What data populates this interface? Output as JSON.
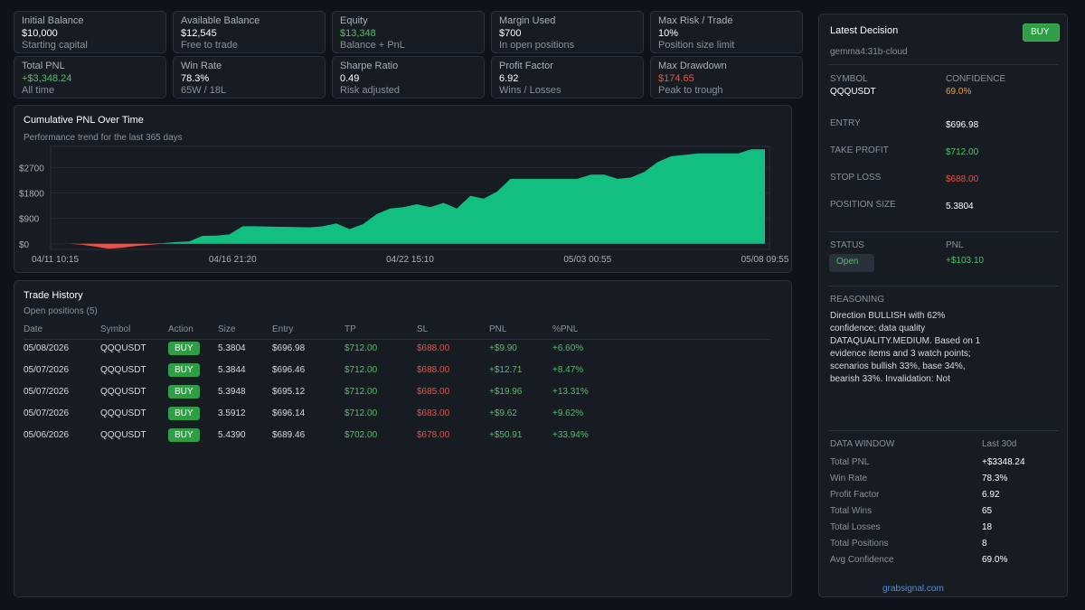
{
  "stats": {
    "initial_balance": {
      "label": "Initial Balance",
      "value": "$10,000",
      "sub": "Starting capital"
    },
    "available_balance": {
      "label": "Available Balance",
      "value": "$12,545",
      "sub": "Free to trade"
    },
    "equity": {
      "label": "Equity",
      "value": "$13,348",
      "sub": "Balance + PnL"
    },
    "margin_used": {
      "label": "Margin Used",
      "value": "$700",
      "sub": "In open positions"
    },
    "max_risk": {
      "label": "Max Risk / Trade",
      "value": "10%",
      "sub": "Position size limit"
    },
    "total_pnl": {
      "label": "Total PNL",
      "value": "+$3,348.24",
      "sub": "All time"
    },
    "win_rate": {
      "label": "Win Rate",
      "value": "78.3%",
      "sub": "65W / 18L"
    },
    "sharpe": {
      "label": "Sharpe Ratio",
      "value": "0.49",
      "sub": "Risk adjusted"
    },
    "profit_factor": {
      "label": "Profit Factor",
      "value": "6.92",
      "sub": "Wins / Losses"
    },
    "max_drawdown": {
      "label": "Max Drawdown",
      "value": "$174.65",
      "sub": "Peak to trough"
    }
  },
  "chart_data": {
    "type": "area",
    "title": "Cumulative PNL Over Time",
    "subtitle": "Performance trend for the last 365 days",
    "xlabel": "",
    "ylabel": "",
    "x_tick_labels": [
      "04/11 10:15",
      "04/16 21:20",
      "04/22 15:10",
      "05/03 00:55",
      "05/08 09:55"
    ],
    "y_tick_labels": [
      "$0",
      "$900",
      "$1800",
      "$2700"
    ],
    "ylim": [
      -200,
      3450
    ],
    "grid": true,
    "positive_color": "#12bf80",
    "negative_color": "#e5534b",
    "values": [
      0,
      0,
      -30,
      -100,
      -175,
      -140,
      -80,
      -40,
      20,
      60,
      80,
      280,
      290,
      330,
      620,
      620,
      610,
      600,
      590,
      580,
      620,
      720,
      520,
      700,
      1050,
      1250,
      1300,
      1400,
      1300,
      1450,
      1250,
      1700,
      1600,
      1850,
      2300,
      2300,
      2300,
      2300,
      2300,
      2300,
      2450,
      2450,
      2300,
      2350,
      2550,
      2900,
      3100,
      3150,
      3200,
      3200,
      3200,
      3200,
      3350,
      3348
    ]
  },
  "trade_history": {
    "title": "Trade History",
    "subtitle": "Open positions (5)",
    "columns": [
      "Date",
      "Symbol",
      "Action",
      "Size",
      "Entry",
      "TP",
      "SL",
      "PNL",
      "%PNL"
    ],
    "rows": [
      {
        "date": "05/08/2026",
        "symbol": "QQQUSDT",
        "action": "BUY",
        "size": "5.3804",
        "entry": "$696.98",
        "tp": "$712.00",
        "sl": "$688.00",
        "pnl": "+$9.90",
        "pnl_pct": "+6.60%"
      },
      {
        "date": "05/07/2026",
        "symbol": "QQQUSDT",
        "action": "BUY",
        "size": "5.3844",
        "entry": "$696.46",
        "tp": "$712.00",
        "sl": "$688.00",
        "pnl": "+$12.71",
        "pnl_pct": "+8.47%"
      },
      {
        "date": "05/07/2026",
        "symbol": "QQQUSDT",
        "action": "BUY",
        "size": "5.3948",
        "entry": "$695.12",
        "tp": "$712.00",
        "sl": "$685.00",
        "pnl": "+$19.96",
        "pnl_pct": "+13.31%"
      },
      {
        "date": "05/07/2026",
        "symbol": "QQQUSDT",
        "action": "BUY",
        "size": "3.5912",
        "entry": "$696.14",
        "tp": "$712.00",
        "sl": "$683.00",
        "pnl": "+$9.62",
        "pnl_pct": "+9.62%"
      },
      {
        "date": "05/06/2026",
        "symbol": "QQQUSDT",
        "action": "BUY",
        "size": "5.4390",
        "entry": "$689.46",
        "tp": "$702.00",
        "sl": "$678.00",
        "pnl": "+$50.91",
        "pnl_pct": "+33.94%"
      }
    ]
  },
  "decision": {
    "title": "Latest Decision",
    "badge": "BUY",
    "model": "gemma4:31b-cloud",
    "symbol_label": "SYMBOL",
    "symbol": "QQQUSDT",
    "confidence_label": "CONFIDENCE",
    "confidence": "69.0%",
    "entry_label": "ENTRY",
    "entry": "$696.98",
    "tp_label": "TAKE PROFIT",
    "tp": "$712.00",
    "sl_label": "STOP LOSS",
    "sl": "$688.00",
    "size_label": "POSITION SIZE",
    "size": "5.3804",
    "status_label": "STATUS",
    "status": "Open",
    "pnl_label": "PNL",
    "pnl": "+$103.10",
    "reasoning_label": "REASONING",
    "reasoning": "Direction BULLISH with 62% confidence; data quality DATAQUALITY.MEDIUM. Based on 1 evidence items and 3 watch points; scenarios bullish 33%, base 34%, bearish 33%. Invalidation: Not",
    "window": {
      "label": "DATA WINDOW",
      "value": "Last 30d",
      "items": [
        {
          "label": "Total PNL",
          "value": "+$3348.24"
        },
        {
          "label": "Win Rate",
          "value": "78.3%"
        },
        {
          "label": "Profit Factor",
          "value": "6.92"
        },
        {
          "label": "Total Wins",
          "value": "65"
        },
        {
          "label": "Total Losses",
          "value": "18"
        },
        {
          "label": "Total Positions",
          "value": "8"
        },
        {
          "label": "Avg Confidence",
          "value": "69.0%"
        }
      ]
    },
    "footer": "grabsignal.com"
  }
}
